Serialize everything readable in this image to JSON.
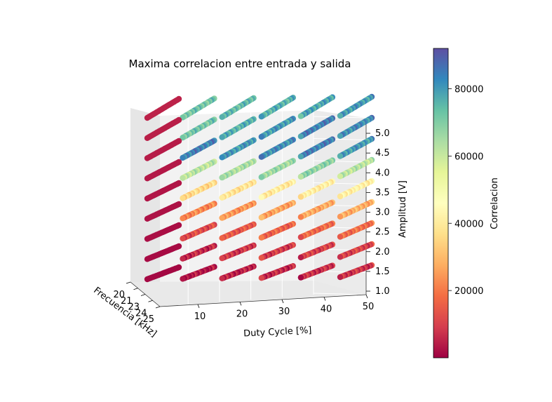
{
  "chart_data": {
    "type": "scatter",
    "projection": "3d",
    "title": "Maxima correlacion entre entrada y salida",
    "xlabel": "Duty Cycle [%]",
    "ylabel": "Frecuencia [kHz]",
    "zlabel": "Amplitud [V]",
    "x_ticks": [
      "10",
      "20",
      "30",
      "40",
      "50"
    ],
    "y_ticks": [
      "20",
      "21",
      "23",
      "24",
      "25"
    ],
    "z_ticks": [
      "1.0",
      "1.5",
      "2.0",
      "2.5",
      "3.0",
      "3.5",
      "4.0",
      "4.5",
      "5.0"
    ],
    "xlim": [
      1,
      50
    ],
    "ylim": [
      20,
      25
    ],
    "zlim": [
      1.0,
      5.0
    ],
    "colormap": "Spectral",
    "colorbar": {
      "label": "Correlacion",
      "ticks": [
        "20000",
        "40000",
        "60000",
        "80000"
      ],
      "range": [
        0,
        92000
      ]
    },
    "duty_cycle_groups": [
      1,
      10,
      20,
      30,
      40,
      50
    ],
    "amplitude_levels": [
      1.0,
      1.5,
      2.0,
      2.5,
      3.0,
      3.5,
      4.0,
      4.5,
      5.0
    ],
    "correlation_by_amplitude_and_duty": [
      {
        "amplitude": 1.0,
        "values": [
          1000,
          3000,
          4500,
          6000,
          7000,
          8000
        ]
      },
      {
        "amplitude": 1.5,
        "values": [
          1500,
          6000,
          8000,
          9000,
          10000,
          10500
        ]
      },
      {
        "amplitude": 2.0,
        "values": [
          2000,
          12000,
          14000,
          16000,
          17000,
          18000
        ]
      },
      {
        "amplitude": 2.5,
        "values": [
          2500,
          22000,
          24000,
          26000,
          27000,
          28000
        ]
      },
      {
        "amplitude": 3.0,
        "values": [
          3000,
          36000,
          38000,
          40000,
          41000,
          42000
        ]
      },
      {
        "amplitude": 3.5,
        "values": [
          3500,
          62000,
          64000,
          66000,
          68000,
          62000
        ]
      },
      {
        "amplitude": 4.0,
        "values": [
          4000,
          84000,
          80000,
          82000,
          84000,
          80000
        ]
      },
      {
        "amplitude": 4.5,
        "values": [
          4500,
          72000,
          76000,
          80000,
          84000,
          82000
        ]
      },
      {
        "amplitude": 5.0,
        "values": [
          5000,
          72000,
          74000,
          76000,
          78000,
          80000
        ]
      }
    ]
  }
}
